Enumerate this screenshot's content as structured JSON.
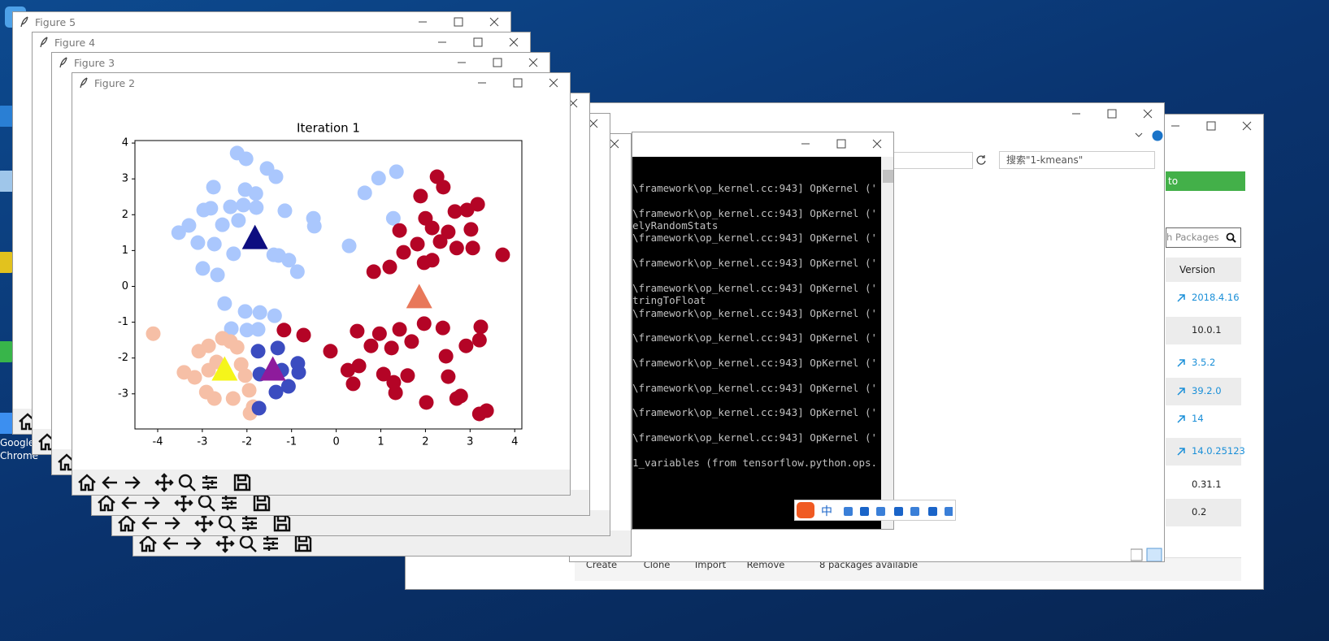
{
  "desktop_icon_labels": [
    "Google",
    "Chrome"
  ],
  "figure_windows": [
    {
      "title": "Figure 5"
    },
    {
      "title": "Figure 4"
    },
    {
      "title": "Figure 3"
    },
    {
      "title": "Figure 2"
    }
  ],
  "background_figure_ticks": [
    "−4",
    "−3",
    "−2",
    "−1",
    "0",
    "1",
    "2",
    "3",
    "4"
  ],
  "explorer": {
    "search_placeholder": "搜索\"1-kmeans\""
  },
  "terminal": {
    "lines": [
      "\\framework\\op_kernel.cc:943] OpKernel ('",
      "\\framework\\op_kernel.cc:943] OpKernel ('",
      "elyRandomStats",
      "\\framework\\op_kernel.cc:943] OpKernel ('",
      "\\framework\\op_kernel.cc:943] OpKernel ('",
      "\\framework\\op_kernel.cc:943] OpKernel ('",
      "tringToFloat",
      "\\framework\\op_kernel.cc:943] OpKernel ('",
      "\\framework\\op_kernel.cc:943] OpKernel ('",
      "\\framework\\op_kernel.cc:943] OpKernel ('",
      "\\framework\\op_kernel.cc:943] OpKernel ('",
      "\\framework\\op_kernel.cc:943] OpKernel ('",
      "\\framework\\op_kernel.cc:943] OpKernel ('",
      "1_variables (from tensorflow.python.ops."
    ]
  },
  "ime_bar": {
    "mode": "中"
  },
  "navigator": {
    "link_button": "to Anaconda.org",
    "search": "h Packages",
    "version_header": "Version",
    "versions": [
      "2018.4.16",
      "10.0.1",
      "3.5.2",
      "39.2.0",
      "14",
      "14.0.25123",
      "0.31.1",
      "0.2"
    ],
    "buttons": [
      "Create",
      "Clone",
      "Import",
      "Remove"
    ],
    "status": "8 packages available"
  },
  "chart_data": {
    "type": "scatter",
    "title": "Iteration 1",
    "xlim": [
      -4.51,
      4.16
    ],
    "ylim": [
      -3.98,
      4.07
    ],
    "xticks": [
      -4,
      -3,
      -2,
      -1,
      0,
      1,
      2,
      3,
      4
    ],
    "yticks": [
      -3,
      -2,
      -1,
      0,
      1,
      2,
      3,
      4
    ],
    "series": [
      {
        "color": "#aac7fd",
        "marker": "circle",
        "x": [
          -2.22,
          -2.02,
          -1.55,
          -1.35,
          -2.75,
          -2.04,
          -1.8,
          -2.97,
          -2.81,
          -2.37,
          -2.08,
          -1.79,
          -1.15,
          -3.3,
          -2.55,
          -2.19,
          -3.53,
          -3.1,
          -2.73,
          -2.3,
          -1.29,
          -2.99,
          -2.66,
          -0.87,
          -0.51,
          -0.49,
          0.29,
          0.64,
          0.95,
          1.35,
          1.28,
          -2.5,
          -2.04,
          -1.71,
          -1.38,
          -2.35,
          -2.0,
          -1.75,
          -1.4,
          -1.06
        ],
        "values": [
          3.72,
          3.56,
          3.29,
          3.06,
          2.77,
          2.7,
          2.59,
          2.13,
          2.18,
          2.22,
          2.27,
          2.2,
          2.11,
          1.7,
          1.72,
          1.84,
          1.5,
          1.22,
          1.18,
          0.91,
          0.86,
          0.5,
          0.32,
          0.41,
          1.9,
          1.68,
          1.13,
          2.61,
          3.02,
          3.2,
          1.9,
          -0.48,
          -0.7,
          -0.73,
          -0.82,
          -1.18,
          -1.22,
          -1.2,
          0.88,
          0.73
        ]
      },
      {
        "color": "#b40426",
        "marker": "circle",
        "x": [
          2.26,
          2.4,
          1.89,
          2.66,
          3.17,
          2.93,
          2.0,
          1.42,
          2.15,
          2.51,
          3.02,
          1.82,
          2.33,
          2.7,
          3.06,
          1.51,
          2.15,
          1.97,
          1.2,
          0.84,
          3.73,
          -1.17,
          -0.73,
          -0.13,
          0.47,
          0.97,
          1.42,
          1.97,
          2.39,
          3.24,
          0.78,
          1.24,
          1.69,
          2.46,
          2.91,
          0.26,
          0.51,
          1.06,
          1.6,
          2.51,
          0.38,
          1.33,
          2.02,
          2.7,
          2.79,
          3.21,
          3.37,
          1.29,
          3.21
        ],
        "values": [
          3.06,
          2.77,
          2.52,
          2.09,
          2.29,
          2.13,
          1.9,
          1.56,
          1.63,
          1.52,
          1.59,
          1.18,
          1.25,
          1.07,
          1.07,
          0.95,
          0.73,
          0.66,
          0.54,
          0.41,
          0.88,
          -1.22,
          -1.36,
          -1.81,
          -1.25,
          -1.32,
          -1.2,
          -1.04,
          -1.16,
          -1.13,
          -1.66,
          -1.72,
          -1.54,
          -1.95,
          -1.66,
          -2.34,
          -2.22,
          -2.45,
          -2.49,
          -2.52,
          -2.72,
          -2.97,
          -3.24,
          -3.13,
          -3.06,
          -3.56,
          -3.47,
          -2.68,
          -1.5
        ]
      },
      {
        "color": "#f6bfa6",
        "marker": "circle",
        "x": [
          -4.1,
          -3.08,
          -2.86,
          -2.55,
          -2.22,
          -2.68,
          -3.41,
          -3.17,
          -2.86,
          -2.13,
          -2.04,
          -2.91,
          -2.73,
          -2.31,
          -1.95,
          -1.93,
          -1.86,
          -2.37
        ],
        "values": [
          -1.32,
          -1.81,
          -1.66,
          -1.45,
          -1.7,
          -2.11,
          -2.4,
          -2.54,
          -2.34,
          -2.18,
          -2.49,
          -2.95,
          -3.13,
          -3.13,
          -2.9,
          -3.54,
          -3.36,
          -1.54
        ]
      },
      {
        "color": "#3b4cc0",
        "marker": "circle",
        "x": [
          -1.75,
          -1.31,
          -1.71,
          -1.22,
          -0.86,
          -0.84,
          -1.07,
          -1.35,
          -1.73
        ],
        "values": [
          -1.81,
          -1.72,
          -2.45,
          -2.34,
          -2.15,
          -2.4,
          -2.79,
          -2.95,
          -3.4
        ]
      },
      {
        "color": "#0d0d80",
        "marker": "triangle",
        "x": [
          -1.82
        ],
        "values": [
          1.29
        ]
      },
      {
        "color": "#e8785a",
        "marker": "triangle",
        "x": [
          1.86
        ],
        "values": [
          -0.36
        ]
      },
      {
        "color": "#f5f51a",
        "marker": "triangle",
        "x": [
          -2.5
        ],
        "values": [
          -2.38
        ]
      },
      {
        "color": "#8e1b9c",
        "marker": "triangle",
        "x": [
          -1.42
        ],
        "values": [
          -2.38
        ]
      }
    ]
  }
}
